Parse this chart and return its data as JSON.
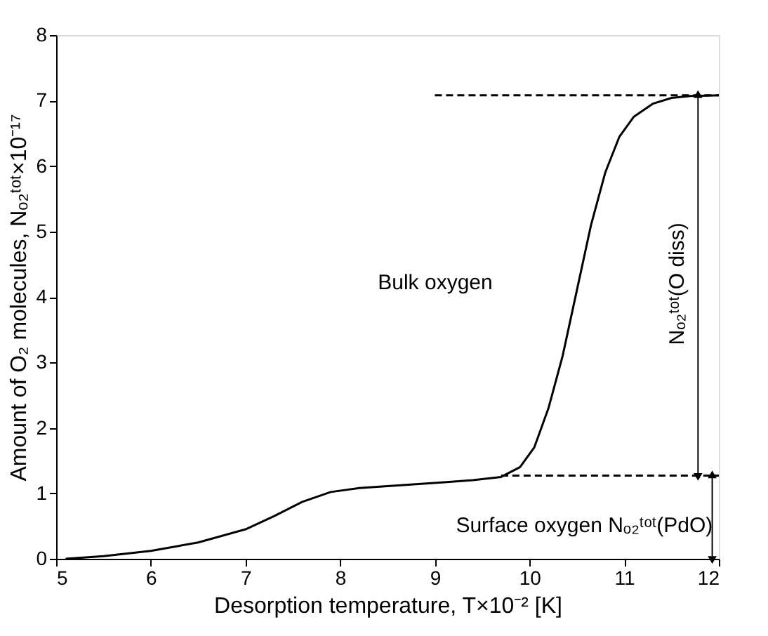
{
  "chart_data": {
    "type": "line",
    "xlabel": "Desorption temperature, T×10⁻² [K]",
    "ylabel": "Amount of O₂ molecules, Nₒ₂ᵗᵒᵗ×10⁻¹⁷",
    "xlim": [
      5,
      12
    ],
    "xticks": [
      {
        "value": 5,
        "label": "5"
      },
      {
        "value": 6,
        "label": "6"
      },
      {
        "value": 7,
        "label": "7"
      },
      {
        "value": 8,
        "label": "8"
      },
      {
        "value": 9,
        "label": "9"
      },
      {
        "value": 10,
        "label": "10"
      },
      {
        "value": 11,
        "label": "11"
      },
      {
        "value": 12,
        "label": "12"
      }
    ],
    "ylim": [
      0,
      8
    ],
    "yticks": [
      0,
      1,
      2,
      3,
      4,
      5,
      6,
      7,
      8
    ],
    "grid": false,
    "marker": "none",
    "series": [
      {
        "color": "#000000",
        "x": [
          5.1,
          5.5,
          6.0,
          6.5,
          7.0,
          7.3,
          7.6,
          7.9,
          8.2,
          8.5,
          8.8,
          9.1,
          9.4,
          9.7,
          9.9,
          10.05,
          10.2,
          10.35,
          10.5,
          10.65,
          10.8,
          10.95,
          11.1,
          11.3,
          11.5,
          11.7,
          12.0
        ],
        "values": [
          0.0,
          0.04,
          0.12,
          0.25,
          0.45,
          0.65,
          0.87,
          1.02,
          1.08,
          1.11,
          1.14,
          1.17,
          1.2,
          1.25,
          1.4,
          1.7,
          2.3,
          3.1,
          4.1,
          5.1,
          5.9,
          6.45,
          6.75,
          6.95,
          7.04,
          7.07,
          7.08
        ]
      },
      {
        "color": "#000000",
        "line_style": "dashed",
        "x": [
          9.0,
          12.0
        ],
        "values": [
          7.08,
          7.08
        ]
      },
      {
        "color": "#000000",
        "line_style": "dashed",
        "x": [
          9.7,
          12.0
        ],
        "values": [
          1.27,
          1.27
        ]
      },
      {
        "color": "#000000",
        "marker": "triangle",
        "x": [
          11.78,
          11.78
        ],
        "values": [
          1.27,
          7.08
        ]
      },
      {
        "color": "#000000",
        "marker": "triangle",
        "x": [
          11.93,
          11.93
        ],
        "values": [
          0.0,
          1.27
        ]
      }
    ],
    "annotations": [
      "Bulk oxygen",
      "Surface oxygen Nₒ₂ᵗᵒᵗ(PdO)",
      "Nₒ₂ᵗᵒᵗ(O diss)"
    ]
  }
}
